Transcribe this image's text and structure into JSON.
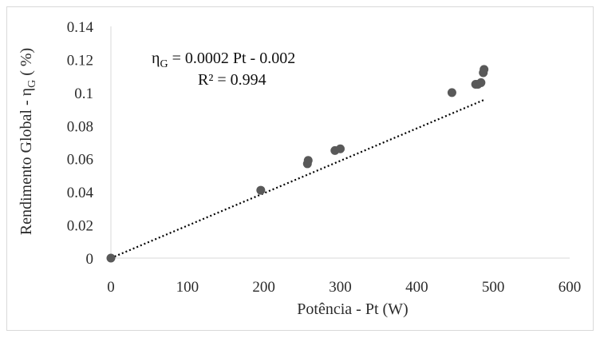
{
  "chart_data": {
    "type": "scatter",
    "title": "",
    "xlabel": "Potência - Pt (W)",
    "ylabel_main": "Rendimento Global - η",
    "ylabel_sub": "G",
    "ylabel_tail": " ( %)",
    "xlim": [
      0,
      600
    ],
    "ylim": [
      0,
      0.14
    ],
    "x_ticks": [
      "0",
      "100",
      "200",
      "300",
      "400",
      "500",
      "600"
    ],
    "y_ticks": [
      "0",
      "0.02",
      "0.04",
      "0.06",
      "0.08",
      "0.1",
      "0.12",
      "0.14"
    ],
    "grid": false,
    "legend": "none",
    "point_color": "#595959",
    "trendline": {
      "slope": 0.0002,
      "intercept": -0.002,
      "x_range": [
        0,
        488
      ],
      "style": "dotted",
      "color": "#000000"
    },
    "equation": {
      "eta": "η",
      "sub": "G",
      "rest": " = 0.0002  Pt - 0.002",
      "r2": "R² = 0.994"
    },
    "points": [
      {
        "x": 0,
        "y": 0
      },
      {
        "x": 196,
        "y": 0.041
      },
      {
        "x": 257,
        "y": 0.057
      },
      {
        "x": 258,
        "y": 0.059
      },
      {
        "x": 293,
        "y": 0.065
      },
      {
        "x": 300,
        "y": 0.066
      },
      {
        "x": 446,
        "y": 0.1
      },
      {
        "x": 477,
        "y": 0.105
      },
      {
        "x": 480,
        "y": 0.105
      },
      {
        "x": 484,
        "y": 0.106
      },
      {
        "x": 487,
        "y": 0.112
      },
      {
        "x": 488,
        "y": 0.114
      }
    ]
  }
}
